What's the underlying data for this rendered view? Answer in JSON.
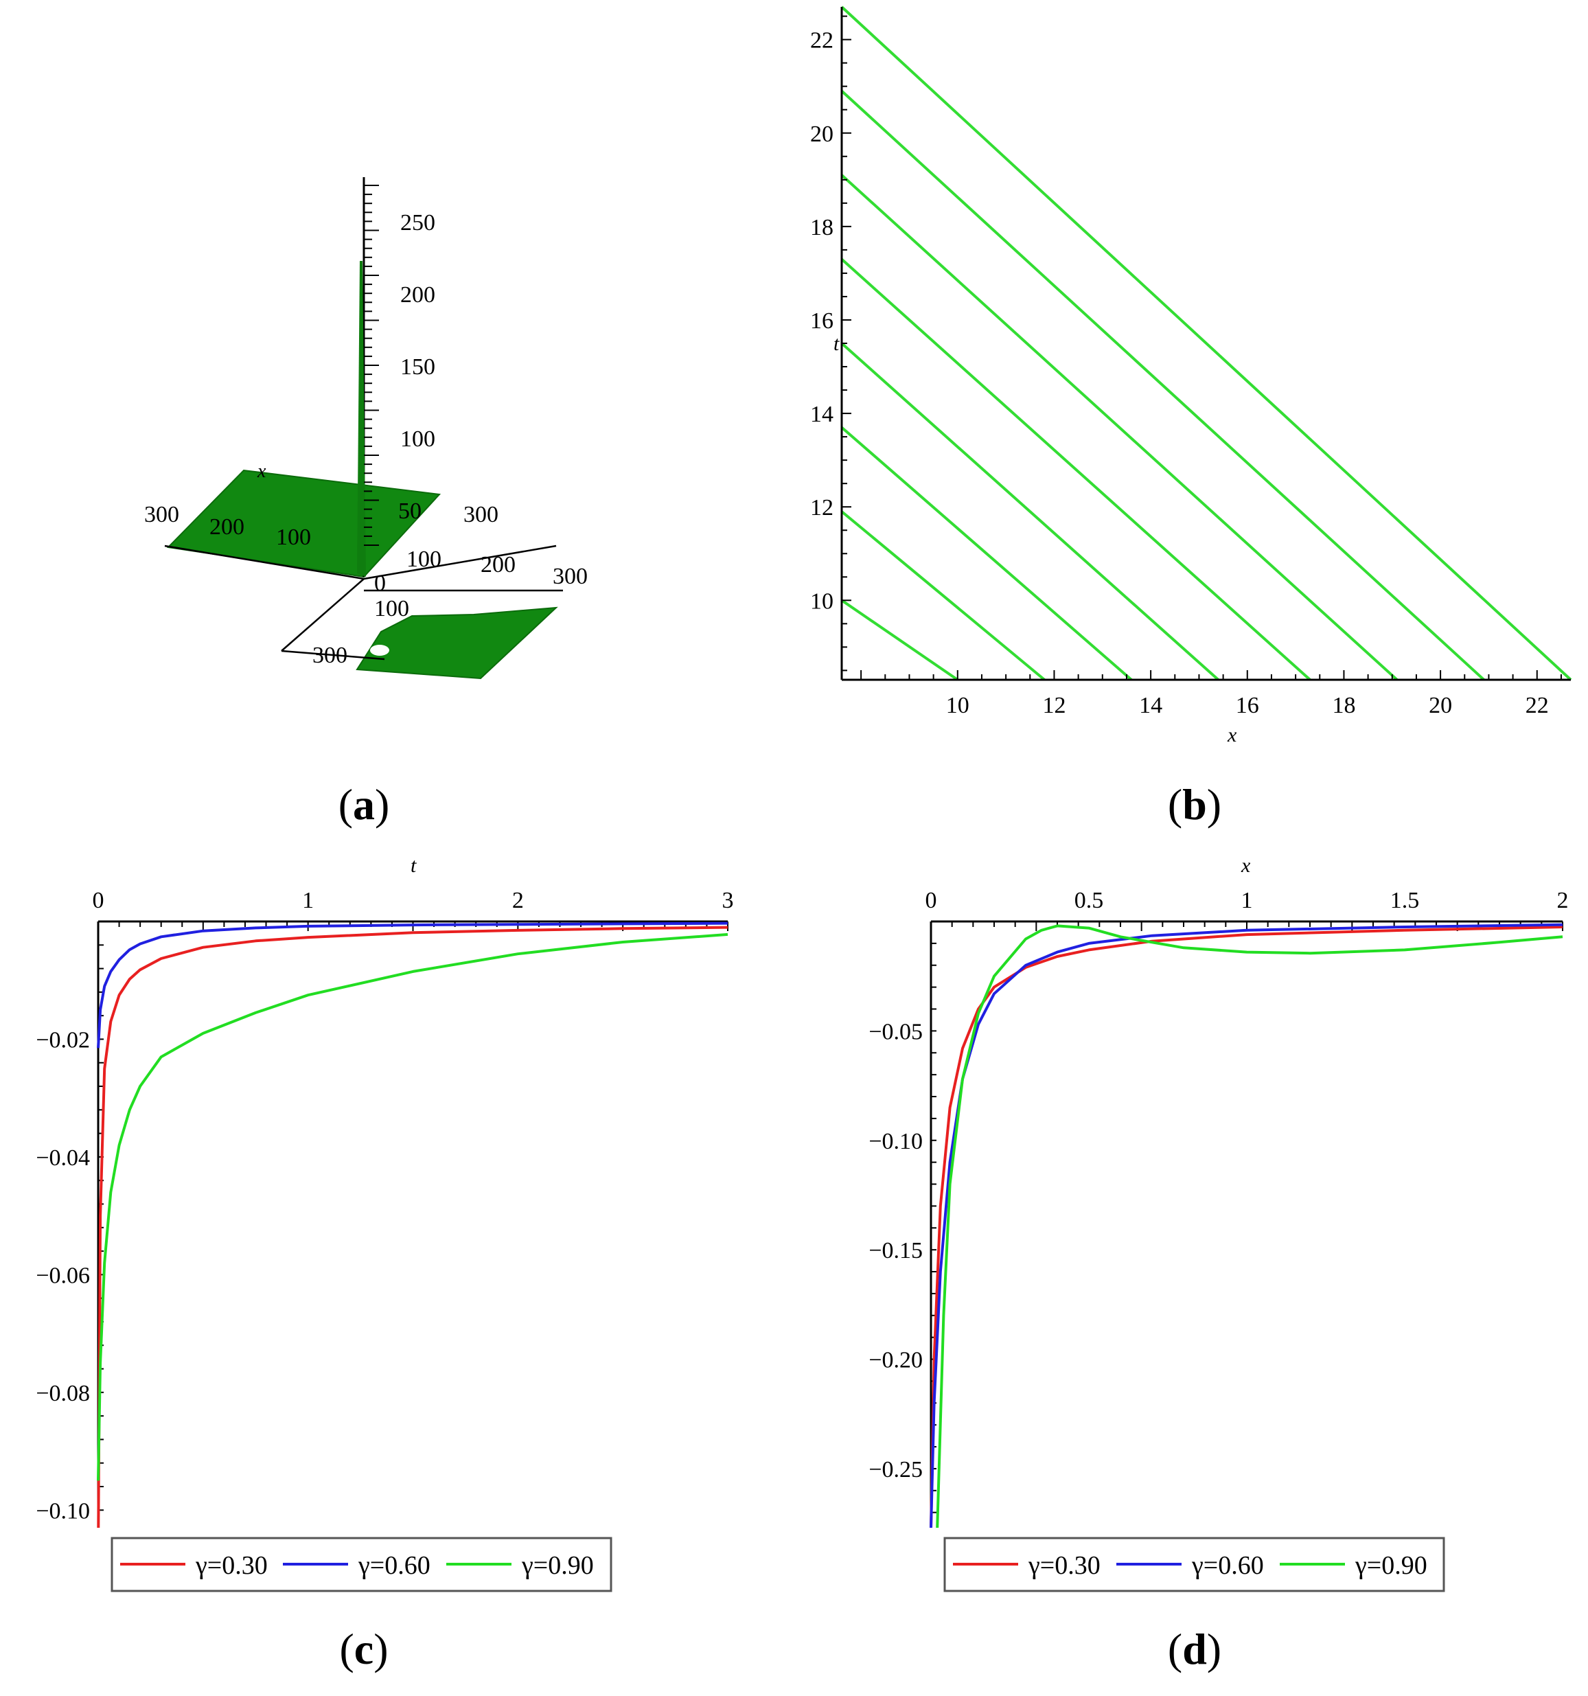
{
  "captions": [
    "a",
    "b",
    "c",
    "d"
  ],
  "panel_a": {
    "z_ticks": [
      "250",
      "200",
      "150",
      "100",
      "50",
      "0"
    ],
    "x_ticks": [
      "300",
      "200",
      "100"
    ],
    "y_ticks": [
      "100",
      "200",
      "300"
    ],
    "lower_ticks": [
      "100",
      "300",
      "300",
      "100"
    ],
    "x_label": "x",
    "surface_color": "#118811"
  },
  "chart_data": [
    {
      "type": "line",
      "panel": "b",
      "xlabel": "x",
      "ylabel": "t",
      "xlim": [
        7.6,
        22.7
      ],
      "ylim": [
        8.3,
        22.7
      ],
      "x_ticks": [
        10,
        12,
        14,
        16,
        18,
        20,
        22
      ],
      "y_ticks": [
        10,
        12,
        14,
        16,
        18,
        20,
        22
      ],
      "color": "#33dd33",
      "series": [
        {
          "x": [
            7.6,
            10.0
          ],
          "y": [
            10.0,
            8.3
          ]
        },
        {
          "x": [
            7.6,
            11.8
          ],
          "y": [
            11.9,
            8.3
          ]
        },
        {
          "x": [
            7.6,
            13.6
          ],
          "y": [
            13.7,
            8.3
          ]
        },
        {
          "x": [
            7.6,
            15.4
          ],
          "y": [
            15.5,
            8.3
          ]
        },
        {
          "x": [
            7.6,
            17.3
          ],
          "y": [
            17.3,
            8.3
          ]
        },
        {
          "x": [
            7.6,
            19.1
          ],
          "y": [
            19.1,
            8.3
          ]
        },
        {
          "x": [
            7.6,
            20.9
          ],
          "y": [
            20.9,
            8.3
          ]
        },
        {
          "x": [
            7.6,
            22.7
          ],
          "y": [
            22.7,
            8.3
          ]
        }
      ]
    },
    {
      "type": "line",
      "panel": "c",
      "xlabel": "t",
      "xlim": [
        0,
        3
      ],
      "ylim": [
        -0.103,
        0
      ],
      "x_ticks": [
        0,
        1,
        2,
        3
      ],
      "y_ticks": [
        -0.02,
        -0.04,
        -0.06,
        -0.08,
        -0.1
      ],
      "series": [
        {
          "name": "γ=0.30",
          "color": "#e82020",
          "x": [
            0.001,
            0.01,
            0.03,
            0.06,
            0.1,
            0.15,
            0.2,
            0.3,
            0.5,
            0.75,
            1.0,
            1.5,
            2.0,
            2.5,
            3.0
          ],
          "y": [
            -0.103,
            -0.05,
            -0.025,
            -0.017,
            -0.0125,
            -0.0098,
            -0.0082,
            -0.0063,
            -0.0044,
            -0.0033,
            -0.0027,
            -0.0019,
            -0.0015,
            -0.0012,
            -0.001
          ]
        },
        {
          "name": "γ=0.60",
          "color": "#2020e0",
          "x": [
            0.0,
            0.01,
            0.03,
            0.06,
            0.1,
            0.15,
            0.2,
            0.3,
            0.5,
            0.75,
            1.0,
            1.5,
            2.0,
            2.5,
            3.0
          ],
          "y": [
            -0.0215,
            -0.015,
            -0.011,
            -0.0085,
            -0.0065,
            -0.0048,
            -0.0038,
            -0.0026,
            -0.0016,
            -0.0011,
            -0.0008,
            -0.0006,
            -0.0005,
            -0.0004,
            -0.0003
          ]
        },
        {
          "name": "γ=0.90",
          "color": "#22dd22",
          "x": [
            0.0,
            0.01,
            0.03,
            0.06,
            0.1,
            0.15,
            0.2,
            0.3,
            0.5,
            0.75,
            1.0,
            1.5,
            2.0,
            2.5,
            3.0
          ],
          "y": [
            -0.095,
            -0.075,
            -0.058,
            -0.046,
            -0.038,
            -0.032,
            -0.028,
            -0.023,
            -0.019,
            -0.0155,
            -0.0125,
            -0.0085,
            -0.0055,
            -0.0035,
            -0.0022
          ]
        }
      ]
    },
    {
      "type": "line",
      "panel": "d",
      "xlabel": "x",
      "xlim": [
        0,
        2
      ],
      "ylim": [
        -0.277,
        0
      ],
      "x_ticks": [
        0,
        0.5,
        1,
        1.5,
        2
      ],
      "y_ticks": [
        -0.05,
        -0.1,
        -0.15,
        -0.2,
        -0.25
      ],
      "series": [
        {
          "name": "γ=0.30",
          "color": "#e82020",
          "x": [
            0.0,
            0.01,
            0.03,
            0.06,
            0.1,
            0.15,
            0.2,
            0.3,
            0.4,
            0.5,
            0.7,
            1.0,
            1.5,
            2.0
          ],
          "y": [
            -0.277,
            -0.2,
            -0.13,
            -0.085,
            -0.058,
            -0.04,
            -0.03,
            -0.021,
            -0.016,
            -0.013,
            -0.009,
            -0.006,
            -0.004,
            -0.0025
          ]
        },
        {
          "name": "γ=0.60",
          "color": "#2020e0",
          "x": [
            0.0,
            0.01,
            0.03,
            0.06,
            0.1,
            0.15,
            0.2,
            0.3,
            0.4,
            0.5,
            0.7,
            1.0,
            1.5,
            2.0
          ],
          "y": [
            -0.277,
            -0.22,
            -0.16,
            -0.11,
            -0.072,
            -0.047,
            -0.033,
            -0.02,
            -0.014,
            -0.01,
            -0.0065,
            -0.004,
            -0.0025,
            -0.0015
          ]
        },
        {
          "name": "γ=0.90",
          "color": "#22dd22",
          "x": [
            0.02,
            0.04,
            0.06,
            0.1,
            0.15,
            0.2,
            0.3,
            0.35,
            0.4,
            0.5,
            0.6,
            0.8,
            1.0,
            1.2,
            1.5,
            1.8,
            2.0
          ],
          "y": [
            -0.277,
            -0.18,
            -0.12,
            -0.072,
            -0.042,
            -0.025,
            -0.008,
            -0.004,
            -0.002,
            -0.003,
            -0.007,
            -0.012,
            -0.014,
            -0.0145,
            -0.013,
            -0.0095,
            -0.007
          ]
        }
      ]
    }
  ]
}
